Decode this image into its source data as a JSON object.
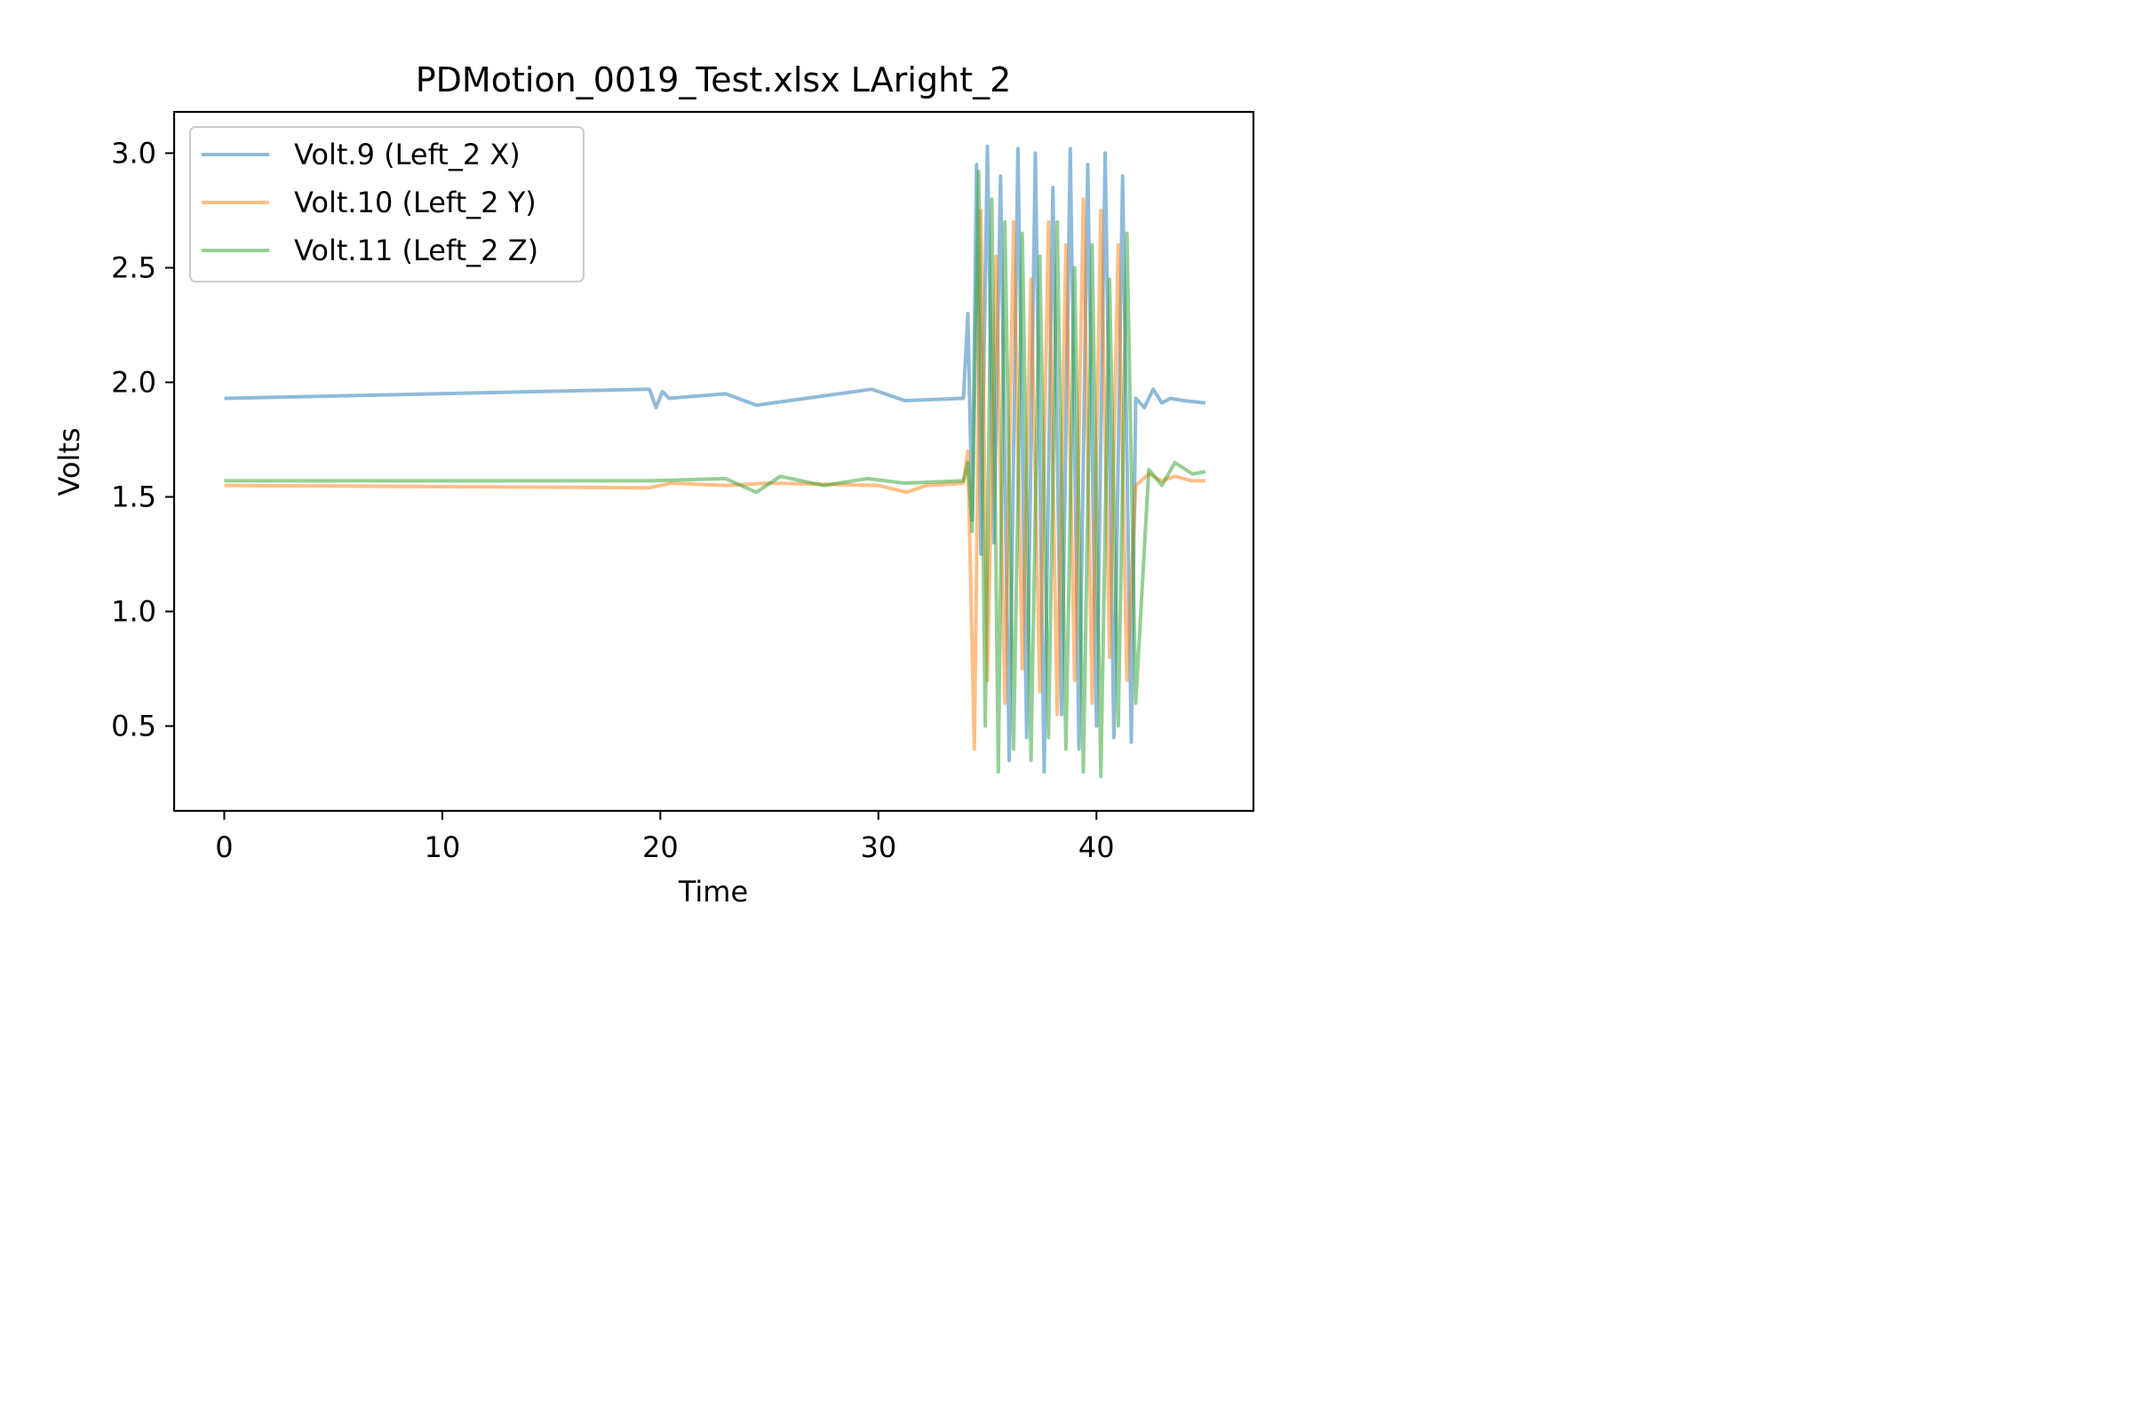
{
  "chart_data": {
    "type": "line",
    "title": "PDMotion_0019_Test.xlsx LAright_2",
    "xlabel": "Time",
    "ylabel": "Volts",
    "xlim": [
      -2.3,
      47.2
    ],
    "ylim": [
      0.13,
      3.18
    ],
    "xticks": [
      0,
      10,
      20,
      30,
      40
    ],
    "xtick_labels": [
      "0",
      "10",
      "20",
      "30",
      "40"
    ],
    "yticks": [
      0.5,
      1.0,
      1.5,
      2.0,
      2.5,
      3.0
    ],
    "ytick_labels": [
      "0.5",
      "1.0",
      "1.5",
      "2.0",
      "2.5",
      "3.0"
    ],
    "grid": false,
    "legend_position": "top-left",
    "series": [
      {
        "name": "Volt.9 (Left_2 X)",
        "color": "#1f77b4",
        "alpha": 0.5,
        "baseline": 1.93,
        "x": [
          0,
          19.5,
          19.8,
          20.1,
          20.4,
          23,
          24.4,
          29.7,
          31.2,
          33.9,
          34.1,
          34.3,
          34.5,
          34.7,
          35.0,
          35.3,
          35.6,
          36.0,
          36.4,
          36.8,
          37.2,
          37.6,
          38.0,
          38.4,
          38.8,
          39.2,
          39.6,
          40.0,
          40.4,
          40.8,
          41.2,
          41.6,
          41.8,
          42.2,
          42.6,
          43.0,
          43.4,
          44.0,
          45.0
        ],
        "y": [
          1.93,
          1.97,
          1.89,
          1.96,
          1.93,
          1.95,
          1.9,
          1.97,
          1.92,
          1.93,
          2.3,
          1.4,
          2.95,
          1.25,
          3.03,
          1.3,
          2.9,
          0.35,
          3.02,
          0.45,
          3.0,
          0.3,
          2.85,
          0.55,
          3.02,
          0.4,
          2.95,
          0.5,
          3.0,
          0.45,
          2.9,
          0.43,
          1.93,
          1.89,
          1.97,
          1.91,
          1.93,
          1.92,
          1.91
        ]
      },
      {
        "name": "Volt.10 (Left_2 Y)",
        "color": "#ff7f0e",
        "alpha": 0.5,
        "baseline": 1.55,
        "x": [
          0,
          19.5,
          20.5,
          23,
          25,
          30,
          31.3,
          32.2,
          33.9,
          34.1,
          34.4,
          34.7,
          35.0,
          35.4,
          35.8,
          36.2,
          36.6,
          37.0,
          37.4,
          37.8,
          38.2,
          38.6,
          39.0,
          39.4,
          39.8,
          40.2,
          40.6,
          41.0,
          41.4,
          41.8,
          42.4,
          43.0,
          43.6,
          44.4,
          45.0
        ],
        "y": [
          1.55,
          1.54,
          1.56,
          1.55,
          1.56,
          1.55,
          1.52,
          1.55,
          1.56,
          1.7,
          0.4,
          2.75,
          0.7,
          2.55,
          0.6,
          2.7,
          0.75,
          2.45,
          0.65,
          2.7,
          0.55,
          2.6,
          0.7,
          2.8,
          0.6,
          2.75,
          0.8,
          2.6,
          0.7,
          1.55,
          1.6,
          1.57,
          1.59,
          1.57,
          1.57
        ]
      },
      {
        "name": "Volt.11 (Left_2 Z)",
        "color": "#2ca02c",
        "alpha": 0.5,
        "baseline": 1.57,
        "x": [
          0,
          19.5,
          23,
          24.4,
          25.5,
          27.5,
          29.5,
          31.2,
          33.9,
          34.1,
          34.3,
          34.6,
          34.9,
          35.2,
          35.5,
          35.8,
          36.2,
          36.6,
          37.0,
          37.4,
          37.8,
          38.2,
          38.6,
          39.0,
          39.4,
          39.8,
          40.2,
          40.6,
          41.0,
          41.4,
          41.8,
          42.4,
          43.0,
          43.6,
          44.4,
          45.0
        ],
        "y": [
          1.57,
          1.57,
          1.58,
          1.52,
          1.59,
          1.55,
          1.58,
          1.56,
          1.57,
          1.65,
          1.35,
          2.92,
          0.5,
          2.8,
          0.3,
          2.7,
          0.4,
          2.65,
          0.35,
          2.55,
          0.45,
          2.7,
          0.4,
          2.5,
          0.3,
          2.6,
          0.28,
          2.45,
          0.5,
          2.65,
          0.6,
          1.62,
          1.55,
          1.65,
          1.6,
          1.61
        ]
      }
    ]
  }
}
